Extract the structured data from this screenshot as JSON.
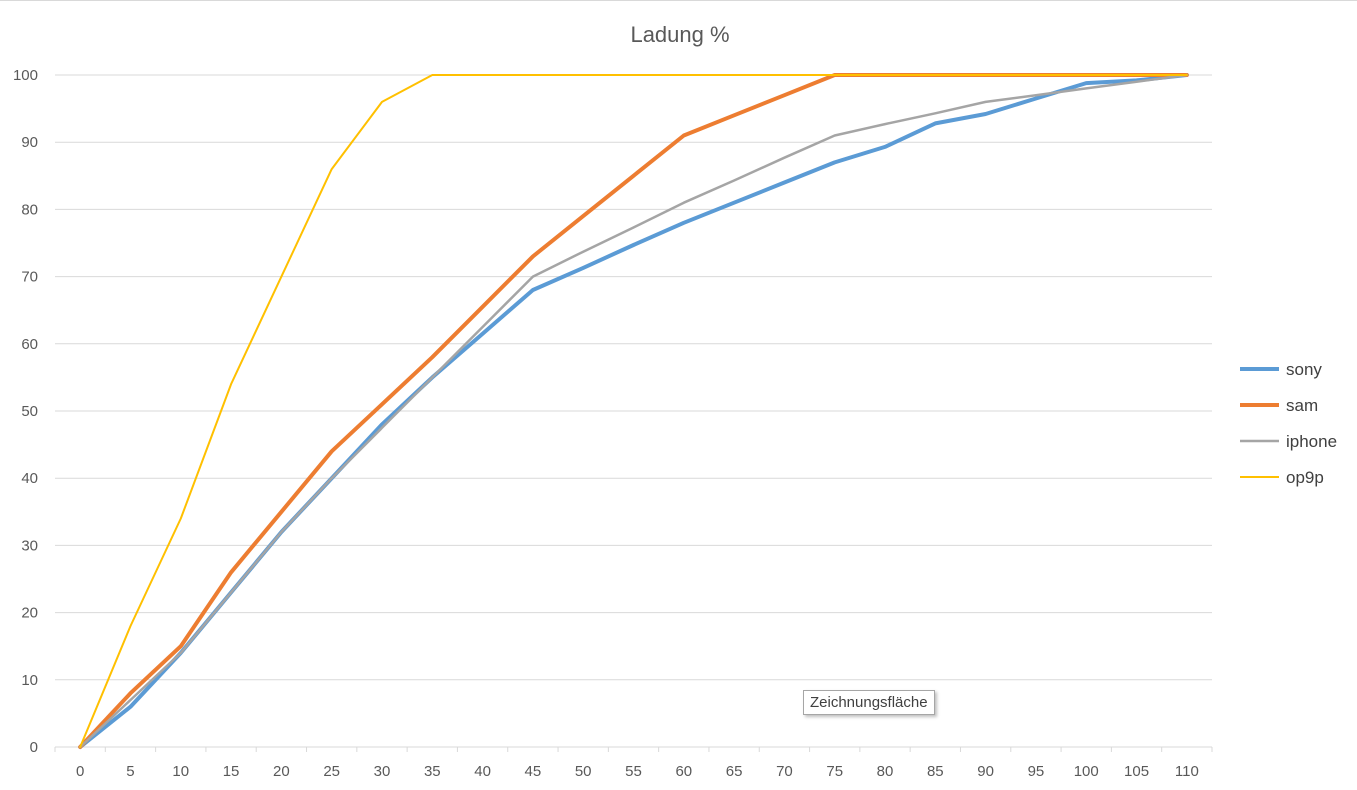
{
  "tooltip": "Zeichnungsfläche",
  "chart_data": {
    "type": "line",
    "title": "Ladung %",
    "xlabel": "",
    "ylabel": "",
    "x": [
      0,
      5,
      10,
      15,
      20,
      25,
      30,
      35,
      40,
      45,
      50,
      55,
      60,
      65,
      70,
      75,
      80,
      85,
      90,
      95,
      100,
      105,
      110
    ],
    "xlim": [
      0,
      110
    ],
    "ylim": [
      0,
      100
    ],
    "yticks": [
      0,
      10,
      20,
      30,
      40,
      50,
      60,
      70,
      80,
      90,
      100
    ],
    "grid": true,
    "legend_position": "right",
    "series": [
      {
        "name": "sony",
        "color": "#5b9bd5",
        "values": [
          0,
          6,
          14,
          23,
          32,
          40,
          48,
          55,
          61.5,
          68,
          71.3,
          74.7,
          78,
          81,
          84,
          87,
          89.3,
          92.8,
          94.2,
          96.5,
          98.8,
          99.2,
          100
        ]
      },
      {
        "name": "sam",
        "color": "#ed7d31",
        "values": [
          0,
          8,
          15,
          26,
          35,
          44,
          51,
          58,
          65.5,
          73,
          79,
          85,
          91,
          94,
          97,
          100,
          100,
          100,
          100,
          100,
          100,
          100,
          100
        ]
      },
      {
        "name": "iphone",
        "color": "#a5a5a5",
        "values": [
          0,
          7,
          14,
          23,
          32,
          40,
          47.5,
          55,
          62.5,
          70,
          73.7,
          77.3,
          81,
          84.3,
          87.7,
          91,
          92.7,
          94.3,
          96,
          97,
          98,
          99,
          100
        ]
      },
      {
        "name": "op9p",
        "color": "#ffc000",
        "values": [
          0,
          18,
          34,
          54,
          70,
          86,
          96,
          100,
          100,
          100,
          100,
          100,
          100,
          100,
          100,
          100,
          100,
          100,
          100,
          100,
          100,
          100,
          100
        ]
      }
    ]
  }
}
